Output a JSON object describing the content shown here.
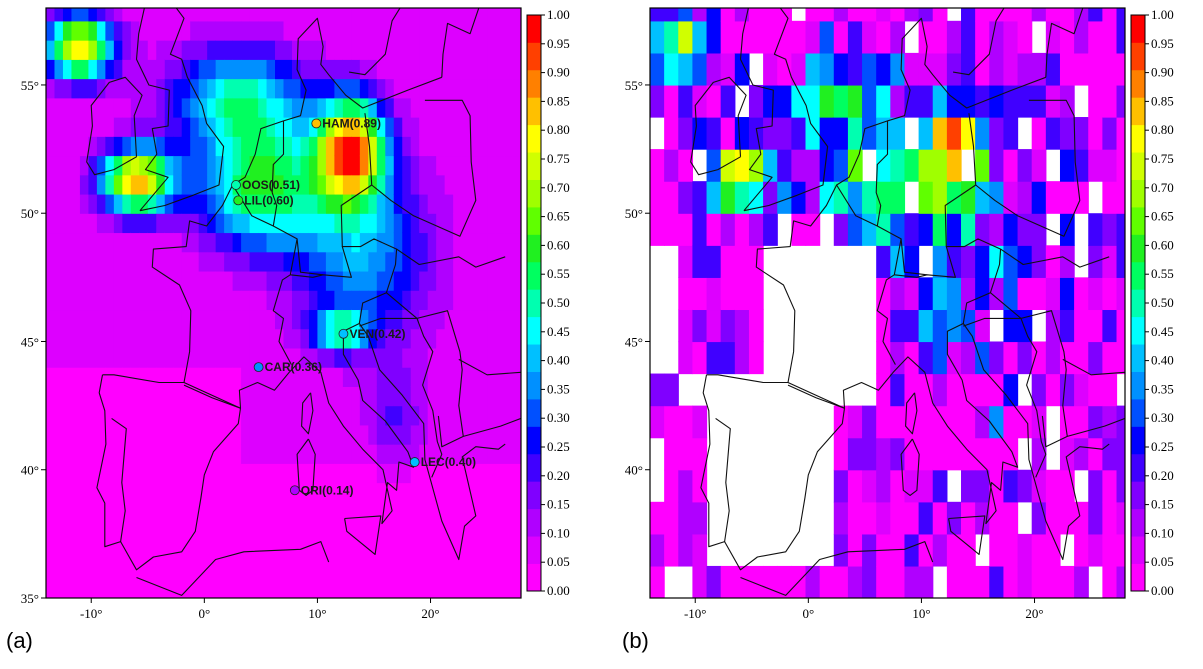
{
  "chart_data": [
    {
      "id": "a",
      "type": "heatmap",
      "panel_label": "(a)",
      "title": "",
      "xlabel": "",
      "ylabel": "",
      "xlim": [
        -14,
        28
      ],
      "ylim": [
        35,
        58
      ],
      "xticks": [
        -10,
        0,
        10,
        20
      ],
      "xtick_labels": [
        "-10°",
        "0°",
        "10°",
        "20°"
      ],
      "yticks": [
        35,
        40,
        45,
        50,
        55
      ],
      "ytick_labels": [
        "35°",
        "40°",
        "45°",
        "50°",
        "55°"
      ],
      "colorbar": {
        "min": 0,
        "max": 1,
        "step": 0.05,
        "tick_labels": [
          "0.00",
          "0.05",
          "0.10",
          "0.15",
          "0.20",
          "0.25",
          "0.30",
          "0.35",
          "0.40",
          "0.45",
          "0.50",
          "0.55",
          "0.60",
          "0.65",
          "0.70",
          "0.75",
          "0.80",
          "0.85",
          "0.90",
          "0.95",
          "1.00"
        ],
        "colors": [
          "#ff00ff",
          "#dd00ff",
          "#b000ff",
          "#8000ff",
          "#4000ff",
          "#0000ff",
          "#0050ff",
          "#0090ff",
          "#00c0ff",
          "#00ffff",
          "#00ffb0",
          "#00ff60",
          "#20f020",
          "#60ff00",
          "#a0ff00",
          "#d0ff00",
          "#ffff00",
          "#ffc000",
          "#ff8000",
          "#ff4000",
          "#ff0000"
        ]
      },
      "stations": [
        {
          "label": "HAM(0.89)",
          "lon": 9.9,
          "lat": 53.5,
          "value": 0.89
        },
        {
          "label": "OOS(0.51)",
          "lon": 2.8,
          "lat": 51.1,
          "value": 0.51
        },
        {
          "label": "LIL(0.60)",
          "lon": 3.0,
          "lat": 50.5,
          "value": 0.6
        },
        {
          "label": "VEN(0.42)",
          "lon": 12.3,
          "lat": 45.3,
          "value": 0.42
        },
        {
          "label": "CAR(0.36)",
          "lon": 4.8,
          "lat": 44.0,
          "value": 0.36
        },
        {
          "label": "LEC(0.40)",
          "lon": 18.6,
          "lat": 40.3,
          "value": 0.4
        },
        {
          "label": "ORI(0.14)",
          "lon": 8.0,
          "lat": 39.2,
          "value": 0.14
        }
      ],
      "field_description": "high values over North Sea / Germany / English Channel, low over Iberia and Mediterranean"
    },
    {
      "id": "b",
      "type": "heatmap",
      "panel_label": "(b)",
      "title": "",
      "xlabel": "",
      "ylabel": "",
      "xlim": [
        -14,
        28
      ],
      "ylim": [
        35,
        58
      ],
      "xticks": [
        -10,
        0,
        10,
        20
      ],
      "xtick_labels": [
        "-10°",
        "0°",
        "10°",
        "20°"
      ],
      "yticks": [
        40,
        45,
        50,
        55
      ],
      "ytick_labels": [
        "40°",
        "45°",
        "50°",
        "55°"
      ],
      "colorbar": {
        "min": 0,
        "max": 1,
        "step": 0.05,
        "tick_labels": [
          "0.00",
          "0.05",
          "0.10",
          "0.15",
          "0.20",
          "0.25",
          "0.30",
          "0.35",
          "0.40",
          "0.45",
          "0.50",
          "0.55",
          "0.60",
          "0.65",
          "0.70",
          "0.75",
          "0.80",
          "0.85",
          "0.90",
          "0.95",
          "1.00"
        ]
      },
      "field_description": "gridded observations; missing cells (white) over western Iberia and France"
    }
  ]
}
